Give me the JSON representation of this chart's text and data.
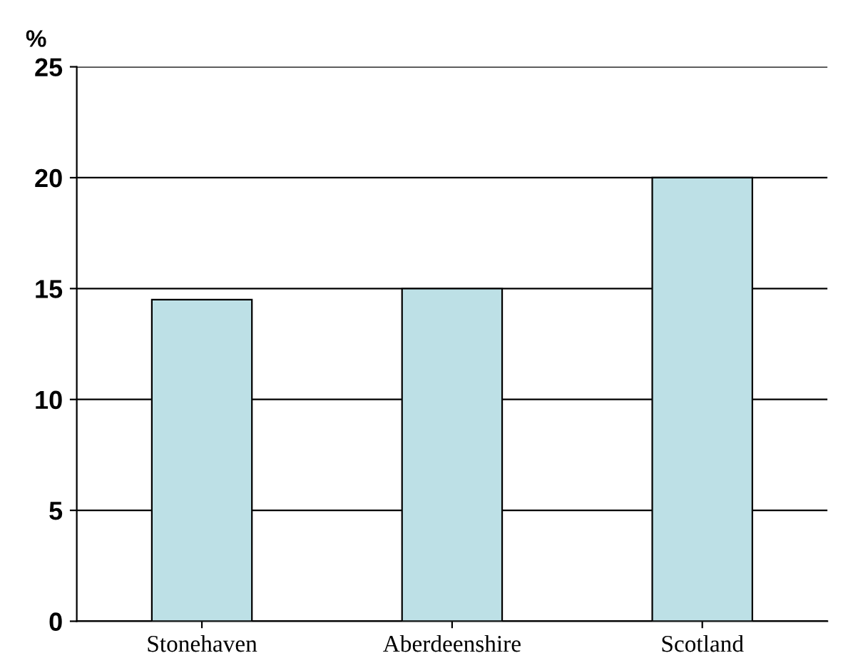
{
  "chart_data": {
    "type": "bar",
    "ylabel": "%",
    "categories": [
      "Stonehaven",
      "Aberdeenshire",
      "Scotland"
    ],
    "values": [
      14.5,
      15,
      20
    ],
    "color": "#bde0e6",
    "ylim": [
      0,
      25
    ],
    "yticks": [
      0,
      5,
      10,
      15,
      20,
      25
    ],
    "grid": "y"
  }
}
